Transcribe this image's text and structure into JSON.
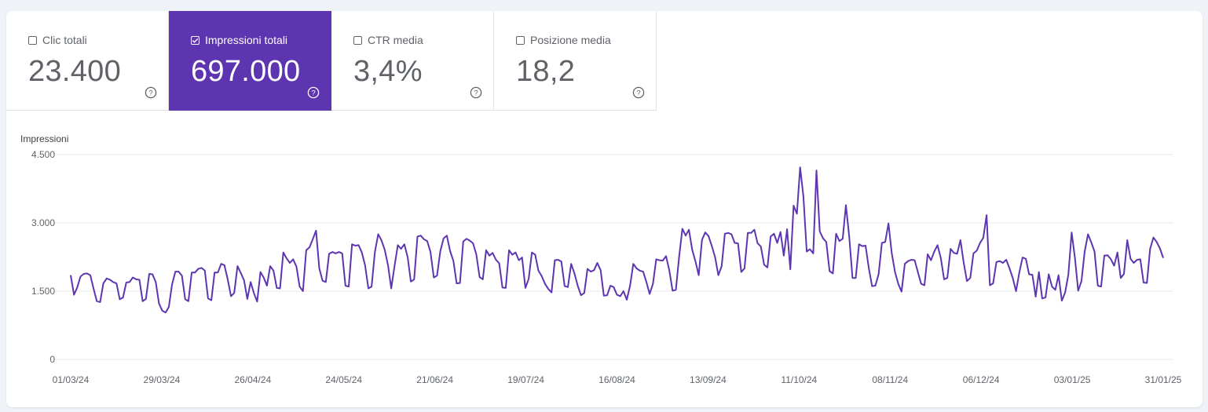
{
  "metrics": [
    {
      "label": "Clic totali",
      "value": "23.400",
      "checked": false
    },
    {
      "label": "Impressioni totali",
      "value": "697.000",
      "checked": true
    },
    {
      "label": "CTR media",
      "value": "3,4%",
      "checked": false
    },
    {
      "label": "Posizione media",
      "value": "18,2",
      "checked": false
    }
  ],
  "colors": {
    "accent": "#5e35b1",
    "line": "#5e35b1",
    "grid": "#e8eaed",
    "text": "#5f6368"
  },
  "chart_data": {
    "type": "line",
    "ylabel": "Impressioni",
    "ylim": [
      0,
      4500
    ],
    "yticks": [
      0,
      1500,
      3000,
      4500
    ],
    "ytick_labels": [
      "0",
      "1.500",
      "3.000",
      "4.500"
    ],
    "xtick_labels": [
      "01/03/24",
      "29/03/24",
      "26/04/24",
      "24/05/24",
      "21/06/24",
      "19/07/24",
      "16/08/24",
      "13/09/24",
      "11/10/24",
      "08/11/24",
      "06/12/24",
      "03/01/25",
      "31/01/25"
    ],
    "grid": true,
    "series": [
      {
        "values": [
          1850,
          1420,
          1580,
          1820,
          1880,
          1890,
          1850,
          1550,
          1280,
          1260,
          1670,
          1780,
          1750,
          1700,
          1670,
          1320,
          1360,
          1690,
          1700,
          1800,
          1760,
          1750,
          1280,
          1330,
          1880,
          1870,
          1700,
          1230,
          1070,
          1030,
          1150,
          1650,
          1930,
          1930,
          1840,
          1320,
          1280,
          1910,
          1910,
          1990,
          2010,
          1950,
          1340,
          1300,
          1910,
          1910,
          2100,
          2070,
          1760,
          1390,
          1460,
          2050,
          1900,
          1740,
          1330,
          1700,
          1460,
          1270,
          1920,
          1800,
          1620,
          2050,
          1950,
          1570,
          1560,
          2350,
          2220,
          2120,
          2200,
          2040,
          1600,
          1500,
          2400,
          2460,
          2640,
          2830,
          2000,
          1730,
          1700,
          2320,
          2360,
          2330,
          2360,
          2330,
          1620,
          1600,
          2530,
          2500,
          2510,
          2350,
          2070,
          1560,
          1600,
          2360,
          2750,
          2620,
          2410,
          2070,
          1560,
          2050,
          2510,
          2430,
          2530,
          2250,
          1710,
          1760,
          2700,
          2720,
          2640,
          2600,
          2360,
          1800,
          1840,
          2380,
          2660,
          2720,
          2380,
          2160,
          1670,
          1680,
          2590,
          2650,
          2610,
          2550,
          2310,
          1810,
          1760,
          2400,
          2280,
          2340,
          2190,
          2110,
          1580,
          1570,
          2400,
          2300,
          2350,
          2180,
          2240,
          1570,
          1770,
          2350,
          2300,
          1950,
          1830,
          1660,
          1550,
          1470,
          2180,
          2190,
          2150,
          1610,
          1590,
          2100,
          1890,
          1620,
          1410,
          1460,
          1990,
          1930,
          1960,
          2120,
          1960,
          1400,
          1410,
          1620,
          1590,
          1420,
          1390,
          1500,
          1310,
          1620,
          2100,
          2000,
          1950,
          1930,
          1700,
          1440,
          1660,
          2200,
          2180,
          2170,
          2270,
          1960,
          1510,
          1530,
          2250,
          2870,
          2720,
          2850,
          2410,
          2150,
          1850,
          2630,
          2790,
          2710,
          2490,
          2250,
          1850,
          2050,
          2760,
          2780,
          2750,
          2560,
          2550,
          1920,
          2000,
          2780,
          2780,
          2850,
          2550,
          2480,
          2080,
          2020,
          2700,
          2760,
          2560,
          2800,
          2280,
          2860,
          1980,
          3380,
          3200,
          4220,
          3580,
          2370,
          2420,
          2330,
          4150,
          2810,
          2660,
          2580,
          1940,
          1890,
          2760,
          2600,
          2650,
          3390,
          2700,
          1790,
          1790,
          2530,
          2490,
          2500,
          2000,
          1610,
          1620,
          1880,
          2560,
          2580,
          2990,
          2340,
          1920,
          1660,
          1490,
          2100,
          2160,
          2190,
          2180,
          1920,
          1660,
          1630,
          2310,
          2180,
          2370,
          2510,
          2230,
          1760,
          1790,
          2430,
          2340,
          2320,
          2620,
          2120,
          1720,
          1790,
          2330,
          2390,
          2560,
          2670,
          3170,
          1630,
          1670,
          2140,
          2160,
          2120,
          2190,
          2000,
          1790,
          1500,
          1910,
          2240,
          2210,
          1870,
          1860,
          1380,
          1920,
          1340,
          1360,
          1870,
          1600,
          1530,
          1850,
          1290,
          1470,
          1860,
          2790,
          2230,
          1510,
          1720,
          2370,
          2750,
          2570,
          2370,
          1620,
          1600,
          2280,
          2290,
          2200,
          2060,
          2350,
          1790,
          1880,
          2620,
          2210,
          2120,
          2190,
          2200,
          1690,
          1680,
          2430,
          2680,
          2580,
          2440,
          2230
        ]
      }
    ]
  }
}
